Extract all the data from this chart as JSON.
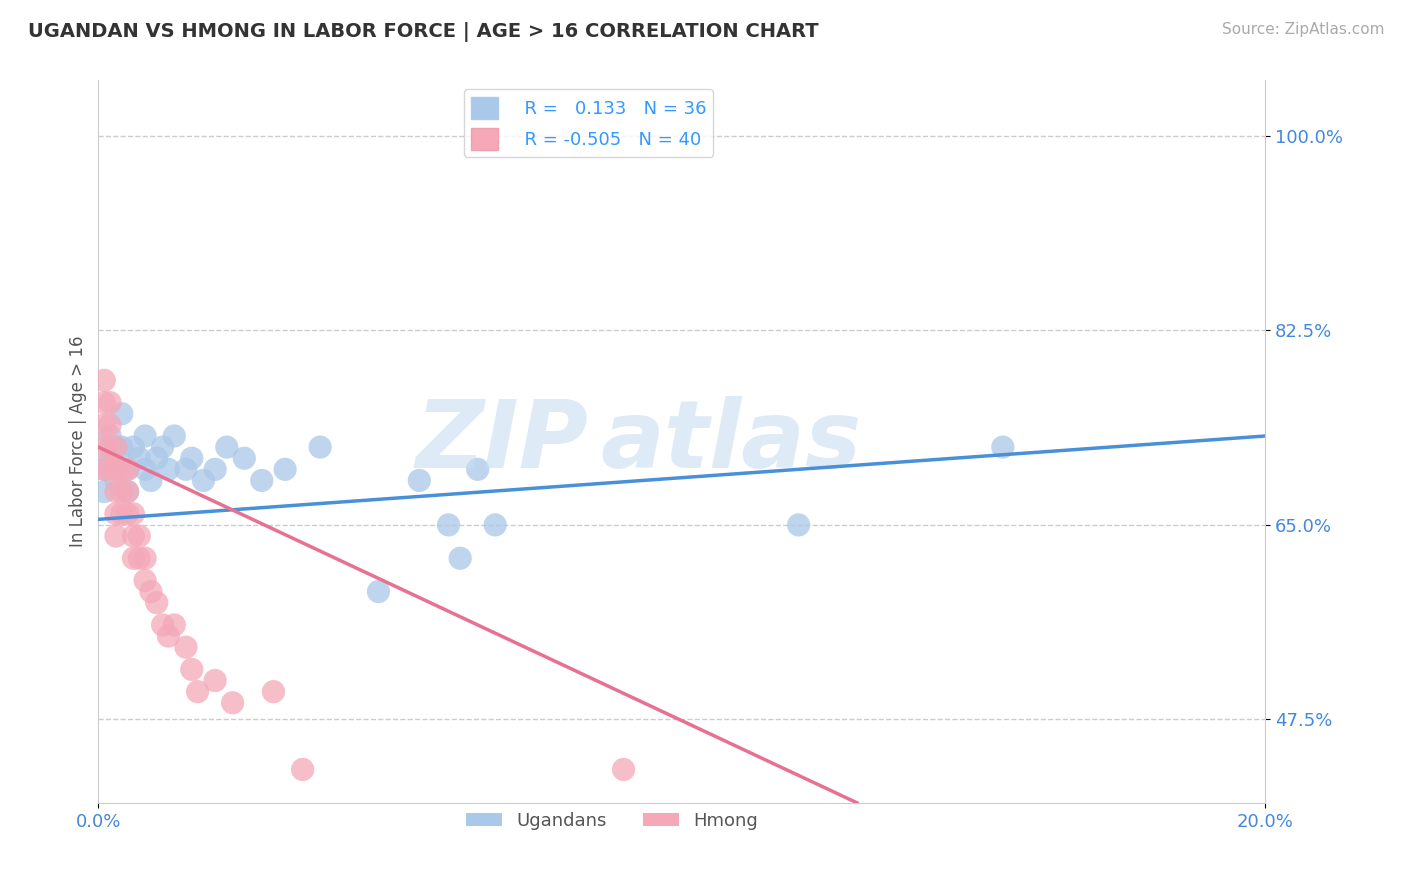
{
  "title": "UGANDAN VS HMONG IN LABOR FORCE | AGE > 16 CORRELATION CHART",
  "source": "Source: ZipAtlas.com",
  "ylabel": "In Labor Force | Age > 16",
  "xlim": [
    0.0,
    0.2
  ],
  "ylim": [
    0.4,
    1.05
  ],
  "yticks": [
    0.475,
    0.65,
    0.825,
    1.0
  ],
  "ytick_labels": [
    "47.5%",
    "65.0%",
    "82.5%",
    "100.0%"
  ],
  "xticks": [
    0.0,
    0.2
  ],
  "xtick_labels": [
    "0.0%",
    "20.0%"
  ],
  "ugandan_R": "0.133",
  "ugandan_N": "36",
  "hmong_R": "-0.505",
  "hmong_N": "40",
  "ugandan_color": "#aac8e8",
  "hmong_color": "#f4a8b8",
  "ugandan_line_color": "#4a90d9",
  "hmong_line_color": "#e87090",
  "ugandan_points_x": [
    0.001,
    0.001,
    0.002,
    0.002,
    0.003,
    0.003,
    0.004,
    0.004,
    0.005,
    0.005,
    0.006,
    0.007,
    0.008,
    0.008,
    0.009,
    0.01,
    0.011,
    0.012,
    0.013,
    0.015,
    0.016,
    0.018,
    0.02,
    0.022,
    0.025,
    0.028,
    0.032,
    0.038,
    0.048,
    0.055,
    0.06,
    0.062,
    0.065,
    0.068,
    0.12,
    0.155
  ],
  "ugandan_points_y": [
    0.68,
    0.7,
    0.71,
    0.73,
    0.72,
    0.69,
    0.75,
    0.72,
    0.7,
    0.68,
    0.72,
    0.71,
    0.7,
    0.73,
    0.69,
    0.71,
    0.72,
    0.7,
    0.73,
    0.7,
    0.71,
    0.69,
    0.7,
    0.72,
    0.71,
    0.69,
    0.7,
    0.72,
    0.59,
    0.69,
    0.65,
    0.62,
    0.7,
    0.65,
    0.65,
    0.72
  ],
  "hmong_points_x": [
    0.001,
    0.001,
    0.001,
    0.001,
    0.001,
    0.002,
    0.002,
    0.002,
    0.002,
    0.003,
    0.003,
    0.003,
    0.003,
    0.003,
    0.004,
    0.004,
    0.004,
    0.005,
    0.005,
    0.005,
    0.006,
    0.006,
    0.006,
    0.007,
    0.007,
    0.008,
    0.008,
    0.009,
    0.01,
    0.011,
    0.012,
    0.013,
    0.015,
    0.016,
    0.017,
    0.02,
    0.023,
    0.03,
    0.035,
    0.09
  ],
  "hmong_points_y": [
    0.78,
    0.76,
    0.74,
    0.72,
    0.7,
    0.76,
    0.74,
    0.72,
    0.7,
    0.72,
    0.7,
    0.68,
    0.66,
    0.64,
    0.7,
    0.68,
    0.66,
    0.7,
    0.68,
    0.66,
    0.66,
    0.64,
    0.62,
    0.64,
    0.62,
    0.62,
    0.6,
    0.59,
    0.58,
    0.56,
    0.55,
    0.56,
    0.54,
    0.52,
    0.5,
    0.51,
    0.49,
    0.5,
    0.43,
    0.43
  ],
  "ugandan_line_x": [
    0.0,
    0.2
  ],
  "ugandan_line_y": [
    0.655,
    0.73
  ],
  "hmong_line_x": [
    0.0,
    0.13
  ],
  "hmong_line_y": [
    0.72,
    0.4
  ]
}
